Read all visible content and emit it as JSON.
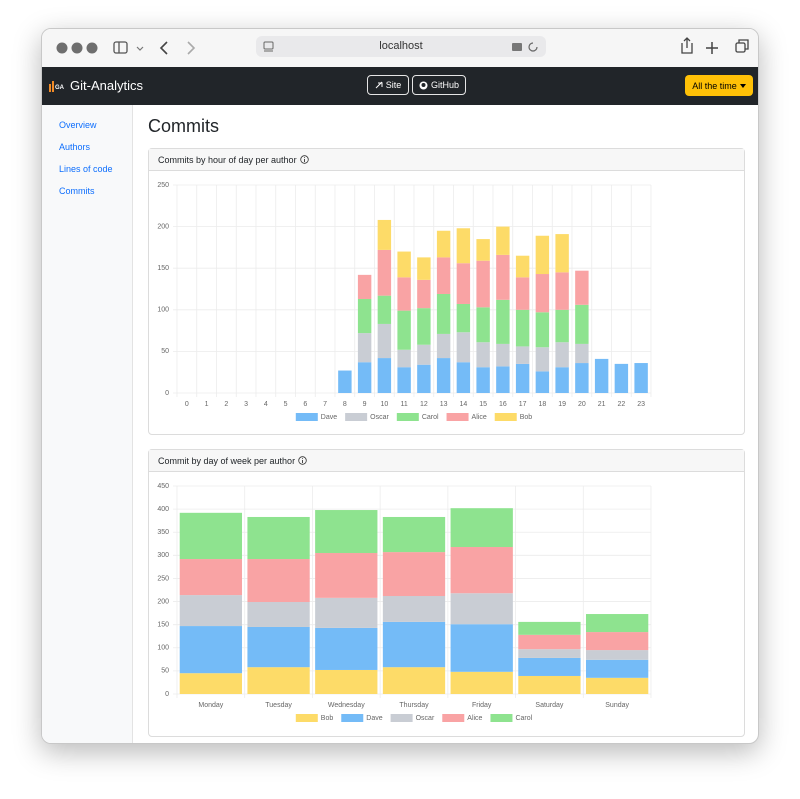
{
  "browser": {
    "url": "localhost"
  },
  "navbar": {
    "logo": "GA",
    "brand": "Git-Analytics",
    "buttons": [
      "Site",
      "GitHub"
    ],
    "range": "All the time"
  },
  "sidebar": {
    "links": [
      "Overview",
      "Authors",
      "Lines of code",
      "Commits"
    ]
  },
  "page_title": "Commits",
  "chart_data": [
    {
      "type": "bar",
      "stacked": true,
      "title": "Commits by hour of day per author",
      "categories": [
        "0",
        "1",
        "2",
        "3",
        "4",
        "5",
        "6",
        "7",
        "8",
        "9",
        "10",
        "11",
        "12",
        "13",
        "14",
        "15",
        "16",
        "17",
        "18",
        "19",
        "20",
        "21",
        "22",
        "23"
      ],
      "series": [
        {
          "name": "Dave",
          "color": "#74bbf7",
          "values": [
            0,
            0,
            0,
            0,
            0,
            0,
            0,
            0,
            27,
            37,
            42,
            31,
            34,
            42,
            37,
            31,
            32,
            35,
            26,
            31,
            36,
            41,
            35,
            36
          ]
        },
        {
          "name": "Oscar",
          "color": "#c9cdd4",
          "values": [
            0,
            0,
            0,
            0,
            0,
            0,
            0,
            0,
            0,
            35,
            41,
            21,
            24,
            29,
            36,
            30,
            27,
            21,
            29,
            30,
            23,
            0,
            0,
            0
          ]
        },
        {
          "name": "Carol",
          "color": "#8ee38f",
          "values": [
            0,
            0,
            0,
            0,
            0,
            0,
            0,
            0,
            0,
            41,
            34,
            47,
            44,
            48,
            34,
            42,
            53,
            44,
            42,
            39,
            47,
            0,
            0,
            0
          ]
        },
        {
          "name": "Alice",
          "color": "#f9a3a4",
          "values": [
            0,
            0,
            0,
            0,
            0,
            0,
            0,
            0,
            0,
            29,
            55,
            40,
            34,
            44,
            49,
            56,
            54,
            39,
            46,
            45,
            41,
            0,
            0,
            0
          ]
        },
        {
          "name": "Bob",
          "color": "#fddb68",
          "values": [
            0,
            0,
            0,
            0,
            0,
            0,
            0,
            0,
            0,
            0,
            36,
            31,
            27,
            32,
            42,
            26,
            34,
            26,
            46,
            46,
            0,
            0,
            0,
            0
          ]
        }
      ],
      "ylim": [
        0,
        250
      ],
      "yticks": [
        0,
        50,
        100,
        150,
        200,
        250
      ],
      "grid": true,
      "legend": "bottom"
    },
    {
      "type": "bar",
      "stacked": true,
      "title": "Commit by day of week per author",
      "categories": [
        "Monday",
        "Tuesday",
        "Wednesday",
        "Thursday",
        "Friday",
        "Saturday",
        "Sunday"
      ],
      "series": [
        {
          "name": "Bob",
          "color": "#fddb68",
          "values": [
            45,
            58,
            52,
            58,
            48,
            39,
            35
          ]
        },
        {
          "name": "Dave",
          "color": "#74bbf7",
          "values": [
            102,
            87,
            91,
            98,
            103,
            39,
            39
          ]
        },
        {
          "name": "Oscar",
          "color": "#c9cdd4",
          "values": [
            67,
            54,
            65,
            56,
            67,
            19,
            21
          ]
        },
        {
          "name": "Alice",
          "color": "#f9a3a4",
          "values": [
            78,
            93,
            97,
            95,
            100,
            31,
            39
          ]
        },
        {
          "name": "Carol",
          "color": "#8ee38f",
          "values": [
            100,
            91,
            93,
            76,
            84,
            28,
            39
          ]
        }
      ],
      "ylim": [
        0,
        450
      ],
      "yticks": [
        0,
        50,
        100,
        150,
        200,
        250,
        300,
        350,
        400,
        450
      ],
      "grid": true,
      "legend": "bottom"
    }
  ]
}
